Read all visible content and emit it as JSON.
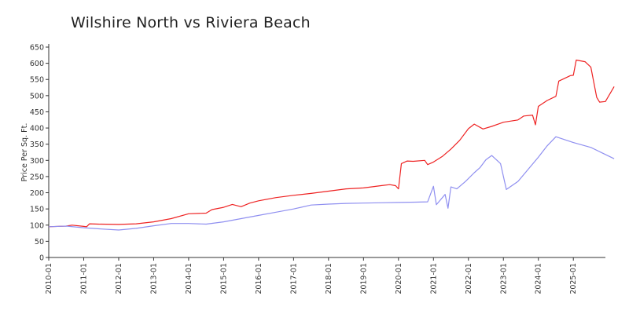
{
  "chart_data": {
    "type": "line",
    "title": "Wilshire North vs Riviera Beach",
    "xlabel": "",
    "ylabel": "Price Per Sq. Ft.",
    "xlim": [
      "2010-01",
      "2025-12"
    ],
    "ylim": [
      0,
      650
    ],
    "yticks": [
      0,
      50,
      100,
      150,
      200,
      250,
      300,
      350,
      400,
      450,
      500,
      550,
      600,
      650
    ],
    "xticks": [
      "2010-01",
      "2011-01",
      "2012-01",
      "2013-01",
      "2014-01",
      "2015-01",
      "2016-01",
      "2017-01",
      "2018-01",
      "2019-01",
      "2020-01",
      "2021-01",
      "2022-01",
      "2023-01",
      "2024-01",
      "2025-01"
    ],
    "grid": false,
    "legend": "none",
    "series": [
      {
        "color": "#ee2222",
        "points": [
          [
            "2010-01",
            95
          ],
          [
            "2010-07",
            97
          ],
          [
            "2010-09",
            100
          ],
          [
            "2011-01",
            96
          ],
          [
            "2011-02",
            95
          ],
          [
            "2011-03",
            104
          ],
          [
            "2011-06",
            103
          ],
          [
            "2012-01",
            102
          ],
          [
            "2012-07",
            104
          ],
          [
            "2013-01",
            110
          ],
          [
            "2013-07",
            120
          ],
          [
            "2014-01",
            135
          ],
          [
            "2014-07",
            137
          ],
          [
            "2014-09",
            148
          ],
          [
            "2015-01",
            155
          ],
          [
            "2015-04",
            164
          ],
          [
            "2015-07",
            157
          ],
          [
            "2015-10",
            168
          ],
          [
            "2016-01",
            175
          ],
          [
            "2016-07",
            185
          ],
          [
            "2017-01",
            192
          ],
          [
            "2017-07",
            198
          ],
          [
            "2018-01",
            205
          ],
          [
            "2018-07",
            212
          ],
          [
            "2019-01",
            215
          ],
          [
            "2019-07",
            222
          ],
          [
            "2019-10",
            225
          ],
          [
            "2019-12",
            222
          ],
          [
            "2020-01",
            212
          ],
          [
            "2020-02",
            290
          ],
          [
            "2020-04",
            298
          ],
          [
            "2020-06",
            297
          ],
          [
            "2020-10",
            300
          ],
          [
            "2020-11",
            287
          ],
          [
            "2021-01",
            295
          ],
          [
            "2021-04",
            312
          ],
          [
            "2021-07",
            335
          ],
          [
            "2021-10",
            362
          ],
          [
            "2022-01",
            398
          ],
          [
            "2022-03",
            412
          ],
          [
            "2022-06",
            397
          ],
          [
            "2022-09",
            405
          ],
          [
            "2023-01",
            418
          ],
          [
            "2023-06",
            425
          ],
          [
            "2023-08",
            437
          ],
          [
            "2023-11",
            440
          ],
          [
            "2023-12",
            410
          ],
          [
            "2024-01",
            467
          ],
          [
            "2024-04",
            485
          ],
          [
            "2024-07",
            498
          ],
          [
            "2024-08",
            545
          ],
          [
            "2024-12",
            562
          ],
          [
            "2025-01",
            563
          ],
          [
            "2025-02",
            610
          ],
          [
            "2025-05",
            605
          ],
          [
            "2025-07",
            588
          ],
          [
            "2025-09",
            495
          ],
          [
            "2025-10",
            480
          ],
          [
            "2025-12",
            482
          ],
          [
            "2026-03",
            528
          ]
        ]
      },
      {
        "color": "#8f8ff0",
        "points": [
          [
            "2010-01",
            95
          ],
          [
            "2010-07",
            97
          ],
          [
            "2011-01",
            92
          ],
          [
            "2011-07",
            88
          ],
          [
            "2012-01",
            85
          ],
          [
            "2012-07",
            90
          ],
          [
            "2013-01",
            98
          ],
          [
            "2013-07",
            105
          ],
          [
            "2014-01",
            105
          ],
          [
            "2014-07",
            103
          ],
          [
            "2015-01",
            110
          ],
          [
            "2015-07",
            120
          ],
          [
            "2016-01",
            130
          ],
          [
            "2016-07",
            140
          ],
          [
            "2017-01",
            150
          ],
          [
            "2017-07",
            162
          ],
          [
            "2018-01",
            165
          ],
          [
            "2018-07",
            167
          ],
          [
            "2019-01",
            168
          ],
          [
            "2019-07",
            169
          ],
          [
            "2020-01",
            170
          ],
          [
            "2020-07",
            171
          ],
          [
            "2020-11",
            172
          ],
          [
            "2021-01",
            220
          ],
          [
            "2021-02",
            163
          ],
          [
            "2021-05",
            195
          ],
          [
            "2021-06",
            152
          ],
          [
            "2021-07",
            218
          ],
          [
            "2021-09",
            212
          ],
          [
            "2021-12",
            235
          ],
          [
            "2022-03",
            262
          ],
          [
            "2022-05",
            278
          ],
          [
            "2022-07",
            302
          ],
          [
            "2022-09",
            315
          ],
          [
            "2022-12",
            290
          ],
          [
            "2023-02",
            210
          ],
          [
            "2023-06",
            235
          ],
          [
            "2024-01",
            310
          ],
          [
            "2024-04",
            345
          ],
          [
            "2024-07",
            373
          ],
          [
            "2025-01",
            355
          ],
          [
            "2025-07",
            340
          ],
          [
            "2026-03",
            305
          ]
        ]
      }
    ]
  }
}
